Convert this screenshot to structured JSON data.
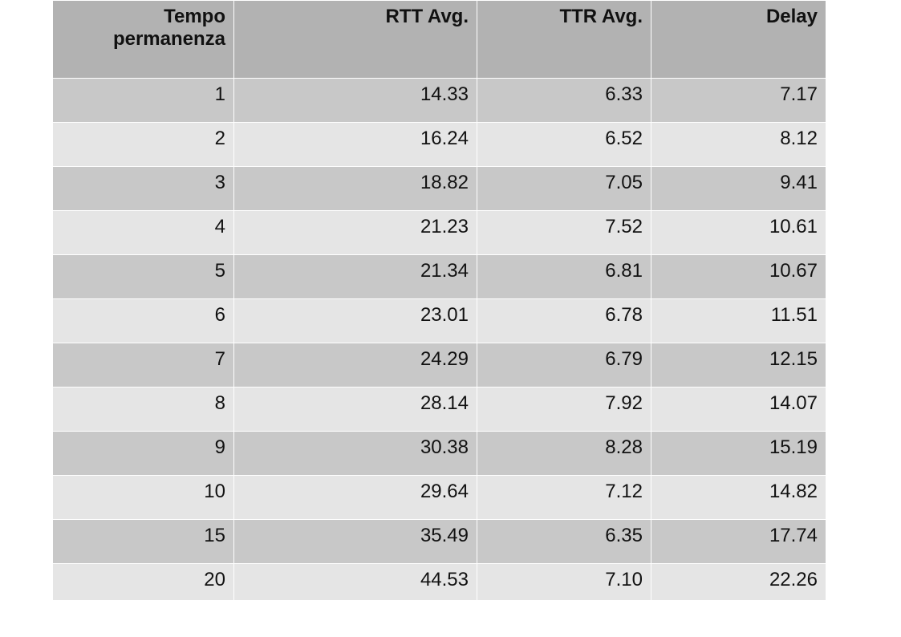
{
  "table": {
    "headers": [
      "Tempo permanenza",
      "RTT Avg.",
      "TTR Avg.",
      "Delay"
    ],
    "rows": [
      [
        "1",
        "14.33",
        "6.33",
        "7.17"
      ],
      [
        "2",
        "16.24",
        "6.52",
        "8.12"
      ],
      [
        "3",
        "18.82",
        "7.05",
        "9.41"
      ],
      [
        "4",
        "21.23",
        "7.52",
        "10.61"
      ],
      [
        "5",
        "21.34",
        "6.81",
        "10.67"
      ],
      [
        "6",
        "23.01",
        "6.78",
        "11.51"
      ],
      [
        "7",
        "24.29",
        "6.79",
        "12.15"
      ],
      [
        "8",
        "28.14",
        "7.92",
        "14.07"
      ],
      [
        "9",
        "30.38",
        "8.28",
        "15.19"
      ],
      [
        "10",
        "29.64",
        "7.12",
        "14.82"
      ],
      [
        "15",
        "35.49",
        "6.35",
        "17.74"
      ],
      [
        "20",
        "44.53",
        "7.10",
        "22.26"
      ]
    ]
  },
  "colors": {
    "header_bg": "#b2b2b2",
    "row_dark_bg": "#c8c8c8",
    "row_light_bg": "#e5e5e5"
  }
}
